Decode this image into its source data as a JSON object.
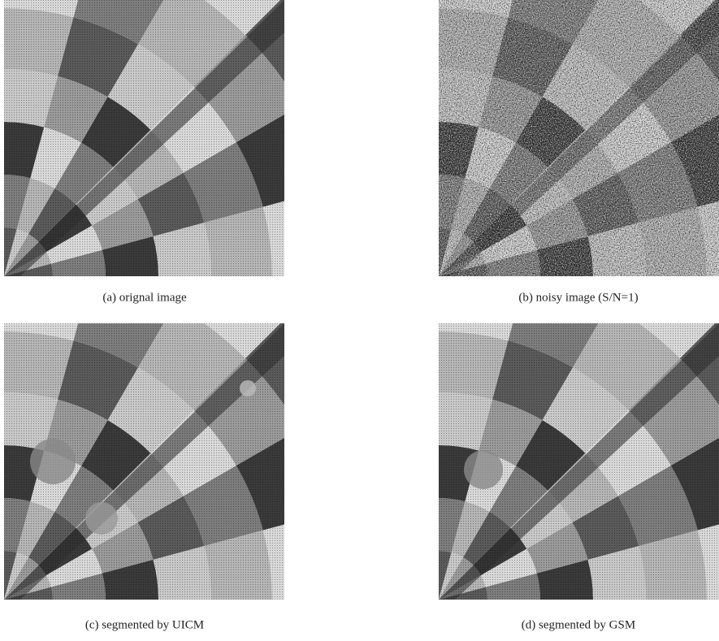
{
  "figure": {
    "panels": [
      {
        "caption": "(a) orignal image"
      },
      {
        "caption": "(b) noisy image (S/N=1)"
      },
      {
        "caption": "(c) segmented by UICM"
      },
      {
        "caption": "(d) segmented by GSM"
      }
    ]
  }
}
